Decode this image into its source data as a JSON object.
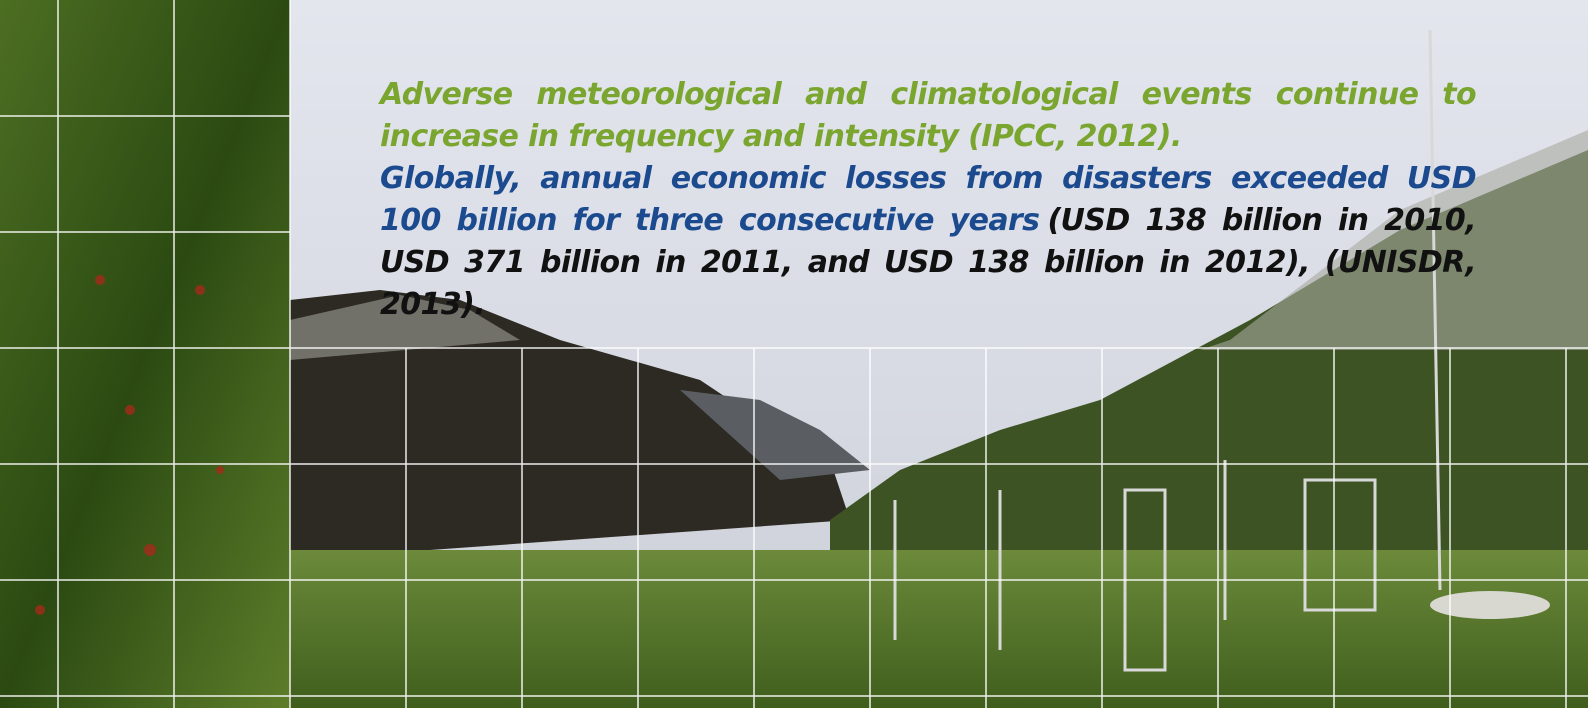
{
  "text": {
    "paragraph_1": "Adverse meteorological and climatological events continue to increase in frequency and intensity (IPCC, 2012).",
    "paragraph_2": {
      "highlight": "Globally, annual economic losses from disasters exceeded USD 100 billion for three consecutive years",
      "details": "(USD 138 billion in 2010, USD 371 billion in 2011, and USD 138 billion in 2012), (UNISDR, 2013)."
    }
  }
}
